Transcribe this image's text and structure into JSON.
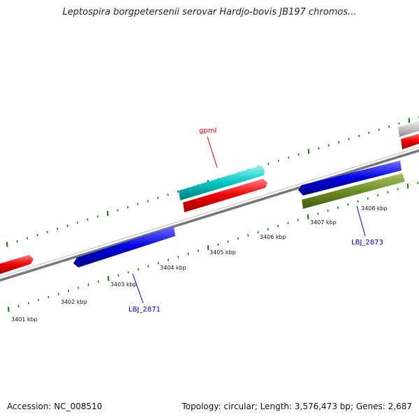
{
  "title": "Leptospira borgpetersenii serovar Hardjo-bovis JB197 chromos...",
  "footer": {
    "accession": "Accession: NC_008510",
    "summary": "Topology: circular; Length: 3,576,473 bp; Genes: 2,687"
  },
  "scale_labels": [
    "3401 kbp",
    "3402 kbp",
    "3403 kbp",
    "3404 kbp",
    "3405 kbp",
    "3406 kbp",
    "3407 kbp",
    "3408 kbp"
  ],
  "gene_labels": [
    {
      "text": "gpmI",
      "color": "#cc0000"
    },
    {
      "text": "LBJ_2871",
      "color": "#0000aa"
    },
    {
      "text": "LBJ_2873",
      "color": "#0000aa"
    }
  ],
  "colors": {
    "red_feature": "#ee0000",
    "cyan_feature": "#00bfbf",
    "blue_feature": "#0000dd",
    "olive_feature": "#6b8e23",
    "gray_feature": "#bdbdbd",
    "backbone": "#888888",
    "tick": "#0a7a0a"
  }
}
